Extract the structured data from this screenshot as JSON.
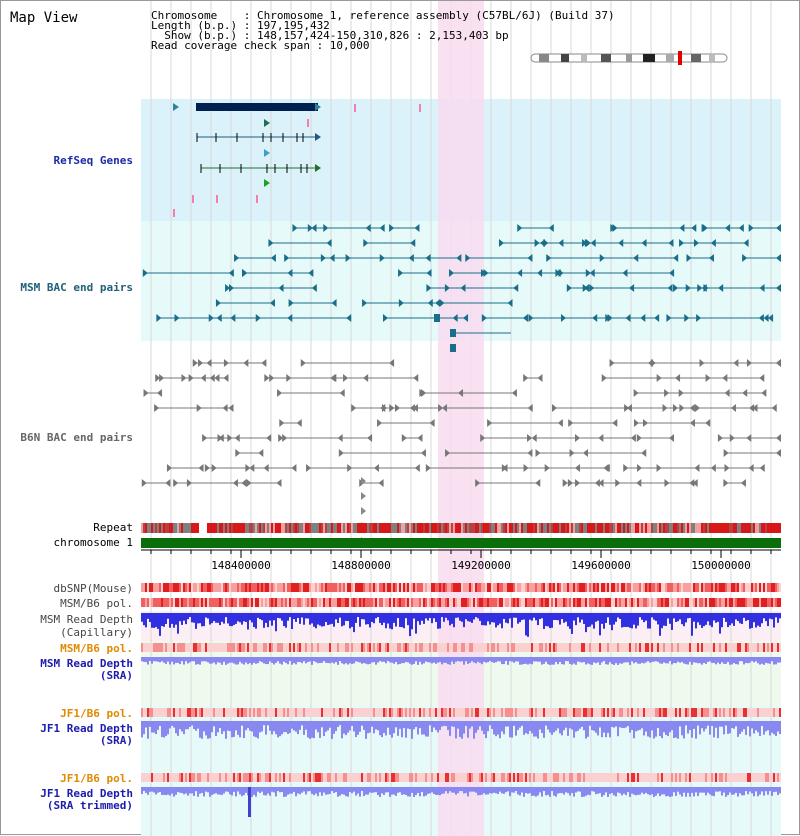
{
  "title": "Map View",
  "info": {
    "line1": "Chromosome    : Chromosome 1, reference assembly (C57BL/6J) (Build 37)",
    "line2": "Length (b.p.) : 197,195,432",
    "line3": "  Show (b.p.) : 148,157,424-150,310,826 : 2,153,403 bp",
    "line4": "Read coverage check span : 10,000"
  },
  "tracks": {
    "refseq": "RefSeq Genes",
    "msm_bac": "MSM BAC end pairs",
    "b6n_bac": "B6N BAC end pairs",
    "repeat": "Repeat",
    "chromosome": "chromosome 1",
    "dbsnp": "dbSNP(Mouse)",
    "msm_b6_pol": "MSM/B6 pol.",
    "msm_depth_cap_1": "MSM Read Depth",
    "msm_depth_cap_2": "(Capillary)",
    "msm_b6_pol_sra": "MSM/B6 pol.",
    "msm_depth_sra_1": "MSM Read Depth",
    "msm_depth_sra_2": "(SRA)",
    "jf1_b6_pol": "JF1/B6 pol.",
    "jf1_depth_1": "JF1 Read Depth",
    "jf1_depth_2": "(SRA)",
    "jf1_b6_pol_trim": "JF1/B6 pol.",
    "jf1_trim_1": "JF1 Read Depth",
    "jf1_trim_2": "(SRA trimmed)"
  },
  "ruler": {
    "ticks": [
      "148400000",
      "148800000",
      "149200000",
      "149600000",
      "150000000"
    ]
  },
  "colors": {
    "refseq_bg": "#dcf2fa",
    "msm_bg": "#e6fafa",
    "highlight": "#f8dcf0",
    "chromosome": "#0a6e0a",
    "snp_red": "#e03030",
    "depth_blue": "#3030e0",
    "depth_light": "#8888f0"
  }
}
